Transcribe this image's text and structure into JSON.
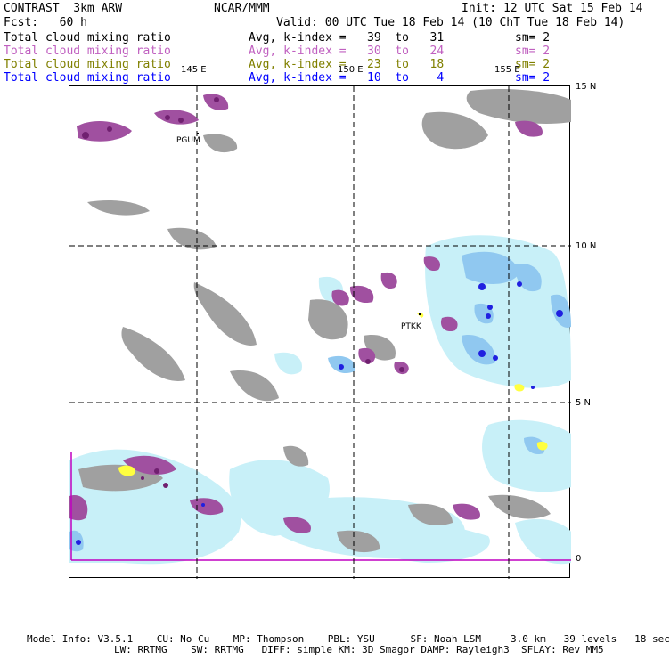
{
  "header": {
    "model": "CONTRAST  3km ARW",
    "center": "NCAR/MMM",
    "init": "Init: 12 UTC Sat 15 Feb 14",
    "fcst": "Fcst:   60 h",
    "valid": "Valid: 00 UTC Tue 18 Feb 14 (10 ChT Tue 18 Feb 14)"
  },
  "legend_rows": [
    {
      "field": "Total cloud mixing ratio",
      "range": "Avg, k-index =   39  to   31",
      "smooth": "sm= 2",
      "color": "#000000"
    },
    {
      "field": "Total cloud mixing ratio",
      "range": "Avg, k-index =   30  to   24",
      "smooth": "sm= 2",
      "color": "#c060c0"
    },
    {
      "field": "Total cloud mixing ratio",
      "range": "Avg, k-index =   23  to   18",
      "smooth": "sm= 2",
      "color": "#808000"
    },
    {
      "field": "Total cloud mixing ratio",
      "range": "Avg, k-index =   10  to    4",
      "smooth": "sm= 2",
      "color": "#0000ff"
    }
  ],
  "map": {
    "lon_labels": [
      "145 E",
      "150 E",
      "155 E"
    ],
    "lat_labels": [
      "15 N",
      "10 N",
      "5 N",
      "0"
    ],
    "stations": [
      "PGUM",
      "PTKK"
    ],
    "colors": {
      "gray_cloud": "#a0a0a0",
      "purple_cloud": "#a050a0",
      "dark_purple_core": "#702070",
      "light_cyan": "#c8f0f8",
      "light_blue": "#90c8f0",
      "blue_core": "#2020e0",
      "yellow": "#ffff40",
      "magenta_boundary": "#c000c0"
    }
  },
  "footer": {
    "line1": "Model Info: V3.5.1    CU: No Cu    MP: Thompson    PBL: YSU      SF: Noah LSM     3.0 km   39 levels   18 sec",
    "line2": "LW: RRTMG    SW: RRTMG   DIFF: simple KM: 3D Smagor DAMP: Rayleigh3  SFLAY: Rev MM5"
  }
}
